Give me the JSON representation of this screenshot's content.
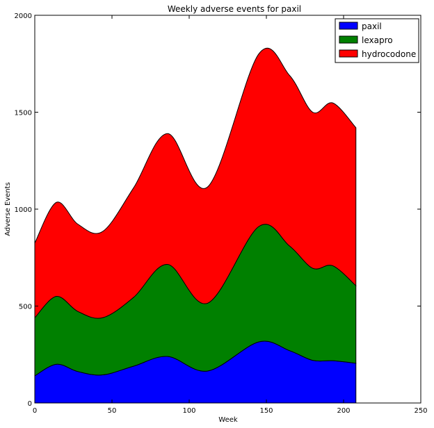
{
  "chart_data": {
    "type": "area",
    "stacked": true,
    "title": "Weekly adverse events for paxil",
    "xlabel": "Week",
    "ylabel": "Adverse Events",
    "xlim": [
      0,
      250
    ],
    "ylim": [
      0,
      2000
    ],
    "xticks": [
      0,
      50,
      100,
      150,
      200,
      250
    ],
    "yticks": [
      0,
      500,
      1000,
      1500,
      2000
    ],
    "grid": false,
    "legend_position": "top-right",
    "x": [
      0,
      14,
      28,
      44,
      64,
      86,
      112,
      145,
      165,
      180,
      193,
      208
    ],
    "series": [
      {
        "name": "paxil",
        "color": "#0000ff",
        "values": [
          140,
          200,
          162,
          145,
          190,
          240,
          165,
          315,
          270,
          220,
          218,
          205
        ]
      },
      {
        "name": "lexapro",
        "color": "#008000",
        "values": [
          300,
          350,
          310,
          295,
          355,
          475,
          350,
          595,
          540,
          475,
          490,
          400
        ]
      },
      {
        "name": "hydrocodone",
        "color": "#ff0000",
        "values": [
          385,
          485,
          450,
          445,
          565,
          675,
          600,
          890,
          880,
          805,
          840,
          815
        ]
      }
    ]
  }
}
